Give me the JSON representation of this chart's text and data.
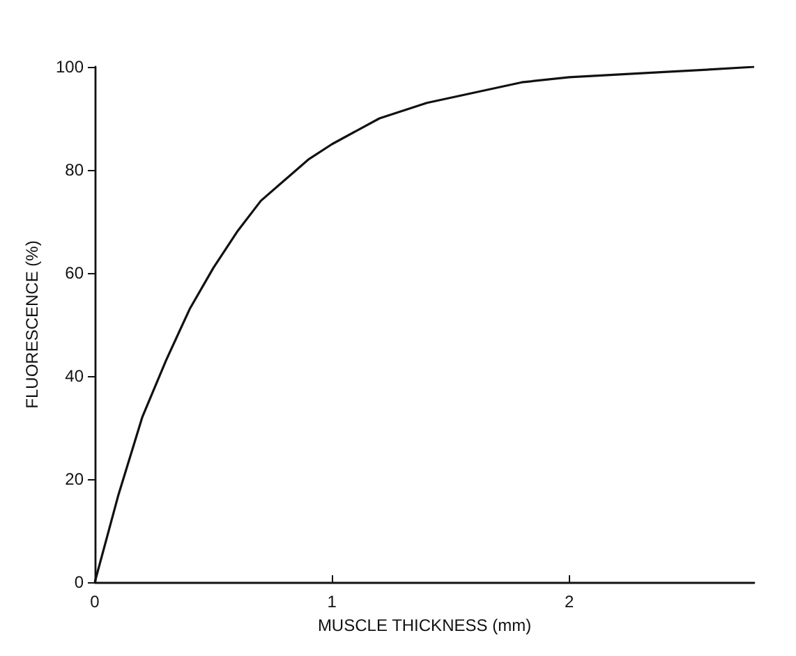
{
  "chart_data": {
    "type": "line",
    "xlabel": "MUSCLE THICKNESS (mm)",
    "ylabel": "FLUORESCENCE (%)",
    "xlim": [
      0,
      2.78
    ],
    "xticks": [
      0,
      1,
      2
    ],
    "ylim": [
      0,
      100
    ],
    "yticks": [
      0,
      20,
      40,
      60,
      80,
      100
    ],
    "grid": false,
    "marker": "none",
    "line_style": "solid",
    "series": [
      {
        "color": "#111111",
        "x": [
          0,
          0.1,
          0.2,
          0.3,
          0.4,
          0.5,
          0.6,
          0.7,
          0.8,
          0.9,
          1.0,
          1.2,
          1.4,
          1.6,
          1.8,
          2.0,
          2.2,
          2.4,
          2.6,
          2.78
        ],
        "values": [
          0,
          17,
          32,
          43,
          53,
          61,
          68,
          74,
          78,
          82,
          85,
          90,
          93,
          95,
          97,
          98,
          98.5,
          99,
          99.5,
          100
        ]
      }
    ]
  }
}
